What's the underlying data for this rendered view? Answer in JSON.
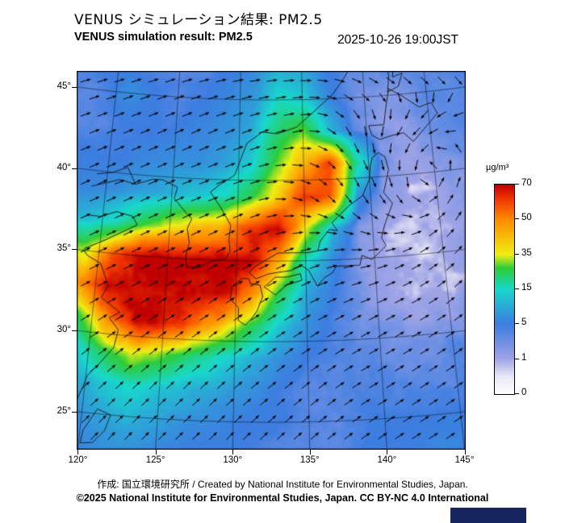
{
  "header": {
    "title_jp": "VENUS シミュレーション結果: PM2.5",
    "title_en": "VENUS simulation result: PM2.5",
    "datetime": "2025-10-26 19:00JST"
  },
  "axes": {
    "lat_ticks": [
      45,
      40,
      35,
      30,
      25
    ],
    "lon_ticks": [
      120,
      125,
      130,
      135,
      140,
      145
    ],
    "degree_suffix": "°"
  },
  "colorbar": {
    "unit": "µg/m³",
    "ticks": [
      70,
      50,
      35,
      15,
      5,
      1,
      0
    ],
    "stops": [
      [
        0,
        "#ffffff"
      ],
      [
        0.08,
        "#eaeaf7"
      ],
      [
        0.167,
        "#a0a4e6"
      ],
      [
        0.333,
        "#3d7de0"
      ],
      [
        0.5,
        "#18d8cc"
      ],
      [
        0.6,
        "#2ecc3a"
      ],
      [
        0.667,
        "#f0ee14"
      ],
      [
        0.833,
        "#ff8c00"
      ],
      [
        0.93,
        "#f23800"
      ],
      [
        1,
        "#c00000"
      ]
    ],
    "border_color": "#000000"
  },
  "footer": {
    "credit": "作成: 国立環境研究所 / Created by National Institute for Environmental Studies, Japan.",
    "license": "©2025 National Institute for Environmental Studies, Japan. CC BY-NC 4.0 International",
    "banner_color": "#16255e"
  },
  "chart_data": {
    "type": "heatmap",
    "title": "VENUS simulation result: PM2.5",
    "datetime": "2025-10-26 19:00JST",
    "units": "µg/m³",
    "projection_hint": "conic (Lambert-like), central meridian ~132.5E, curved graticule",
    "extent": {
      "lon": [
        119,
        147
      ],
      "lat": [
        23,
        47
      ]
    },
    "scale_breakpoints": [
      0,
      1,
      5,
      15,
      35,
      50,
      70
    ],
    "lon": [
      119,
      121,
      123,
      125,
      127,
      129,
      131,
      133,
      135,
      137,
      139,
      141,
      143,
      145,
      147
    ],
    "lat": [
      47,
      45,
      43,
      41,
      39,
      37,
      35,
      33,
      31,
      29,
      27,
      25,
      23
    ],
    "values": [
      [
        5,
        4,
        4,
        4,
        4,
        5,
        6,
        10,
        9,
        5,
        4,
        4,
        4,
        4,
        4
      ],
      [
        4,
        7,
        5,
        4,
        5,
        6,
        8,
        16,
        14,
        6,
        3,
        2,
        2.5,
        4,
        4
      ],
      [
        4,
        5,
        5,
        5,
        6,
        7,
        10,
        22,
        30,
        12,
        4,
        2,
        2,
        3,
        4
      ],
      [
        5,
        5,
        6,
        7,
        7,
        9,
        14,
        30,
        45,
        60,
        20,
        3,
        1,
        2,
        3
      ],
      [
        6,
        7,
        9,
        11,
        13,
        16,
        26,
        40,
        62,
        55,
        8,
        2,
        1,
        1,
        2
      ],
      [
        12,
        16,
        26,
        36,
        42,
        47,
        62,
        70,
        36,
        11,
        2,
        1,
        0.7,
        1,
        1.5
      ],
      [
        32,
        56,
        70,
        70,
        70,
        70,
        70,
        46,
        16,
        6,
        2,
        1,
        0.7,
        0.7,
        1.5
      ],
      [
        50,
        70,
        70,
        70,
        70,
        70,
        52,
        26,
        9,
        5,
        2,
        1,
        0.8,
        0.8,
        1.5
      ],
      [
        26,
        50,
        70,
        66,
        56,
        42,
        26,
        13,
        7,
        4,
        3,
        2,
        1.5,
        2,
        3
      ],
      [
        13,
        26,
        36,
        30,
        21,
        16,
        11,
        7,
        5,
        4,
        4,
        3,
        3,
        4,
        4
      ],
      [
        9,
        13,
        16,
        13,
        11,
        9,
        7,
        5,
        4,
        4,
        4,
        4,
        4,
        4,
        5
      ],
      [
        6,
        9,
        11,
        9,
        7,
        6,
        5,
        5,
        4,
        4,
        5,
        5,
        5,
        5,
        5
      ],
      [
        5,
        7,
        7,
        6,
        5,
        5,
        5,
        4,
        4,
        4,
        5,
        5,
        6,
        6,
        6
      ]
    ],
    "wind": {
      "note": "quiver overlay, uniform-length direction arrows",
      "lon": [
        119,
        123,
        127,
        131,
        135,
        139,
        143,
        147
      ],
      "lat": [
        47,
        43,
        39,
        35,
        31,
        27,
        23
      ],
      "u": [
        [
          2,
          2,
          2,
          2,
          2,
          2,
          2,
          2
        ],
        [
          2,
          2,
          2,
          2,
          1.6,
          0.6,
          -1.2,
          -1.8
        ],
        [
          2,
          2.2,
          2.2,
          2,
          1.6,
          1.2,
          0.2,
          1.2
        ],
        [
          2.4,
          2.4,
          2.4,
          2.2,
          2,
          2.4,
          2.8,
          2.4
        ],
        [
          2,
          2.4,
          2.4,
          2.2,
          2,
          2.4,
          2.4,
          2
        ],
        [
          1.6,
          2,
          2,
          2,
          2,
          2,
          2,
          2
        ],
        [
          1.4,
          1.6,
          2,
          2,
          2,
          2,
          2,
          2
        ]
      ],
      "v": [
        [
          0.6,
          0.6,
          0.4,
          0.2,
          0,
          -0.4,
          -0.8,
          -0.8
        ],
        [
          0.8,
          0.8,
          0.8,
          0.6,
          0.2,
          -1.2,
          -1,
          -0.2
        ],
        [
          1,
          1,
          0.8,
          0.6,
          -0.6,
          -2,
          -1,
          2
        ],
        [
          1.2,
          1.2,
          1.2,
          1,
          0.6,
          0.2,
          1,
          2
        ],
        [
          1.4,
          1.6,
          1.6,
          1.4,
          1,
          1,
          1,
          1.2
        ],
        [
          1.6,
          2,
          2,
          1.6,
          1.4,
          1,
          1,
          1
        ],
        [
          1.6,
          2,
          2,
          2,
          1.6,
          1.2,
          1,
          1
        ]
      ]
    },
    "legend_position": "right",
    "grid": true
  }
}
